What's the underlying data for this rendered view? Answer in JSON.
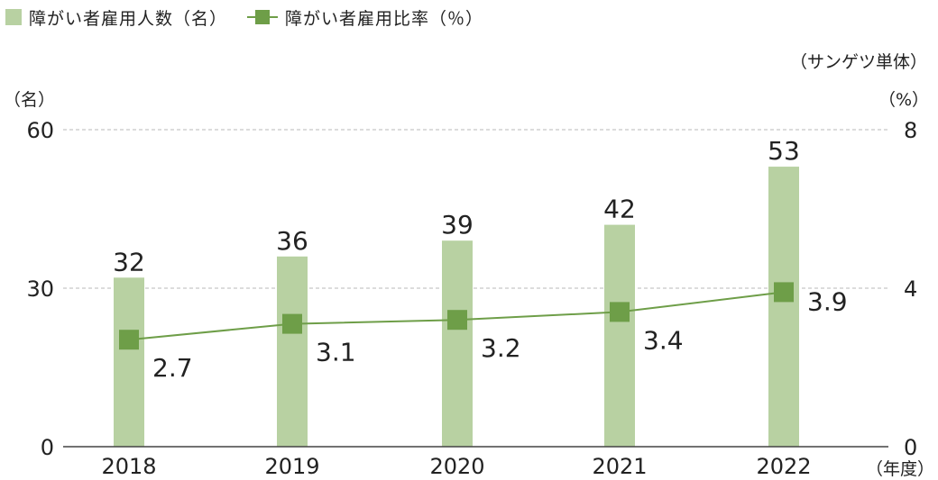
{
  "legend": {
    "bar_label": "障がい者雇用人数（名）",
    "line_label": "障がい者雇用比率（％）"
  },
  "notes": {
    "scope": "（サンゲツ単体）",
    "left_unit": "（名）",
    "right_unit": "（%）",
    "x_unit": "（年度）"
  },
  "colors": {
    "bar": "#b8d1a2",
    "line": "#6e9e48",
    "marker": "#6e9e48",
    "grid": "#b8b8b8",
    "axis": "#444444"
  },
  "chart_data": {
    "type": "bar",
    "categories": [
      "2018",
      "2019",
      "2020",
      "2021",
      "2022"
    ],
    "series": [
      {
        "name": "障がい者雇用人数（名）",
        "type": "bar",
        "axis": "left",
        "values": [
          32,
          36,
          39,
          42,
          53
        ]
      },
      {
        "name": "障がい者雇用比率（％）",
        "type": "line",
        "axis": "right",
        "values": [
          2.7,
          3.1,
          3.2,
          3.4,
          3.9
        ]
      }
    ],
    "bar_labels": [
      "32",
      "36",
      "39",
      "42",
      "53"
    ],
    "line_labels": [
      "2.7",
      "3.1",
      "3.2",
      "3.4",
      "3.9"
    ],
    "y_left": {
      "min": 0,
      "max": 60,
      "ticks": [
        "0",
        "30",
        "60"
      ]
    },
    "y_right": {
      "min": 0,
      "max": 8,
      "ticks": [
        "0",
        "4",
        "8"
      ]
    },
    "grid": true,
    "legend_position": "top-left"
  }
}
